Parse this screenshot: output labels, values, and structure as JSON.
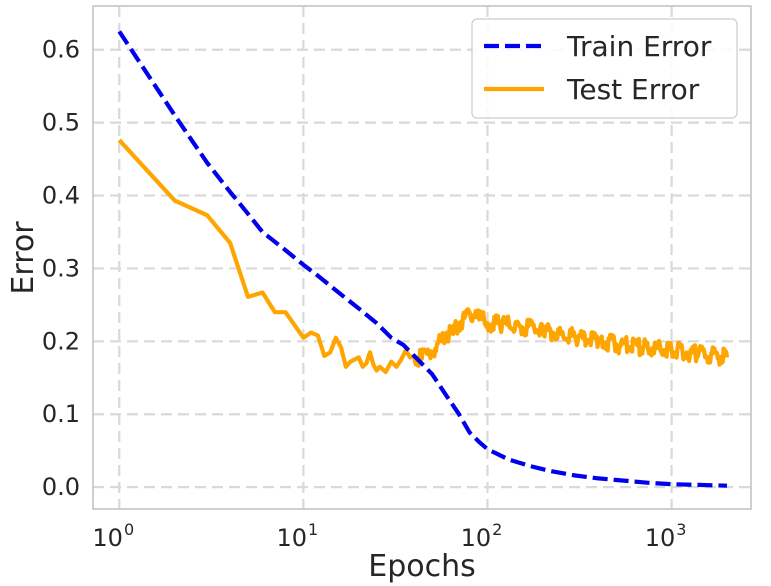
{
  "chart_data": {
    "type": "line",
    "xlabel": "Epochs",
    "ylabel": "Error",
    "xscale": "log",
    "xlim": [
      0.72,
      2700
    ],
    "ylim": [
      -0.03,
      0.66
    ],
    "grid": true,
    "legend_position": "top-right",
    "x_ticks": [
      {
        "value": 1,
        "label": "10",
        "exp": "0"
      },
      {
        "value": 10,
        "label": "10",
        "exp": "1"
      },
      {
        "value": 100,
        "label": "10",
        "exp": "2"
      },
      {
        "value": 1000,
        "label": "10",
        "exp": "3"
      }
    ],
    "y_ticks": [
      {
        "value": 0.0,
        "label": "0.0"
      },
      {
        "value": 0.1,
        "label": "0.1"
      },
      {
        "value": 0.2,
        "label": "0.2"
      },
      {
        "value": 0.3,
        "label": "0.3"
      },
      {
        "value": 0.4,
        "label": "0.4"
      },
      {
        "value": 0.5,
        "label": "0.5"
      },
      {
        "value": 0.6,
        "label": "0.6"
      }
    ],
    "series": [
      {
        "name": "Train Error",
        "color": "#0000ee",
        "style": "dashed",
        "points": [
          [
            1,
            0.625
          ],
          [
            2,
            0.51
          ],
          [
            3,
            0.445
          ],
          [
            4,
            0.405
          ],
          [
            5,
            0.375
          ],
          [
            6,
            0.35
          ],
          [
            8,
            0.325
          ],
          [
            10,
            0.305
          ],
          [
            12,
            0.29
          ],
          [
            15,
            0.27
          ],
          [
            20,
            0.245
          ],
          [
            25,
            0.225
          ],
          [
            30,
            0.205
          ],
          [
            35,
            0.195
          ],
          [
            40,
            0.18
          ],
          [
            50,
            0.155
          ],
          [
            60,
            0.125
          ],
          [
            70,
            0.1
          ],
          [
            80,
            0.075
          ],
          [
            90,
            0.062
          ],
          [
            100,
            0.052
          ],
          [
            130,
            0.038
          ],
          [
            170,
            0.029
          ],
          [
            220,
            0.022
          ],
          [
            300,
            0.016
          ],
          [
            400,
            0.012
          ],
          [
            550,
            0.009
          ],
          [
            750,
            0.006
          ],
          [
            1000,
            0.004
          ],
          [
            1400,
            0.003
          ],
          [
            2000,
            0.002
          ]
        ]
      },
      {
        "name": "Test Error",
        "color": "#ffa500",
        "style": "solid",
        "points": [
          [
            1,
            0.476
          ],
          [
            2,
            0.393
          ],
          [
            3,
            0.373
          ],
          [
            4,
            0.335
          ],
          [
            5,
            0.261
          ],
          [
            6,
            0.267
          ],
          [
            7,
            0.24
          ],
          [
            8,
            0.24
          ],
          [
            10,
            0.205
          ],
          [
            11,
            0.212
          ],
          [
            12,
            0.208
          ],
          [
            13,
            0.18
          ],
          [
            14,
            0.185
          ],
          [
            15,
            0.205
          ],
          [
            16,
            0.192
          ],
          [
            17,
            0.165
          ],
          [
            18,
            0.172
          ],
          [
            20,
            0.178
          ],
          [
            21,
            0.165
          ],
          [
            22,
            0.17
          ],
          [
            23,
            0.185
          ],
          [
            24,
            0.168
          ],
          [
            25,
            0.16
          ],
          [
            26,
            0.165
          ],
          [
            28,
            0.158
          ],
          [
            30,
            0.172
          ],
          [
            32,
            0.165
          ],
          [
            34,
            0.175
          ],
          [
            36,
            0.188
          ],
          [
            38,
            0.178
          ],
          [
            40,
            0.18
          ],
          [
            44,
            0.176
          ],
          [
            48,
            0.185
          ],
          [
            52,
            0.19
          ],
          [
            56,
            0.2
          ],
          [
            60,
            0.212
          ],
          [
            65,
            0.21
          ],
          [
            70,
            0.225
          ],
          [
            75,
            0.232
          ],
          [
            80,
            0.24
          ],
          [
            90,
            0.23
          ],
          [
            100,
            0.225
          ],
          [
            120,
            0.223
          ],
          [
            150,
            0.22
          ],
          [
            200,
            0.215
          ],
          [
            250,
            0.21
          ],
          [
            300,
            0.205
          ],
          [
            400,
            0.2
          ],
          [
            500,
            0.196
          ],
          [
            700,
            0.192
          ],
          [
            1000,
            0.188
          ],
          [
            1400,
            0.183
          ],
          [
            2000,
            0.178
          ]
        ]
      }
    ]
  }
}
